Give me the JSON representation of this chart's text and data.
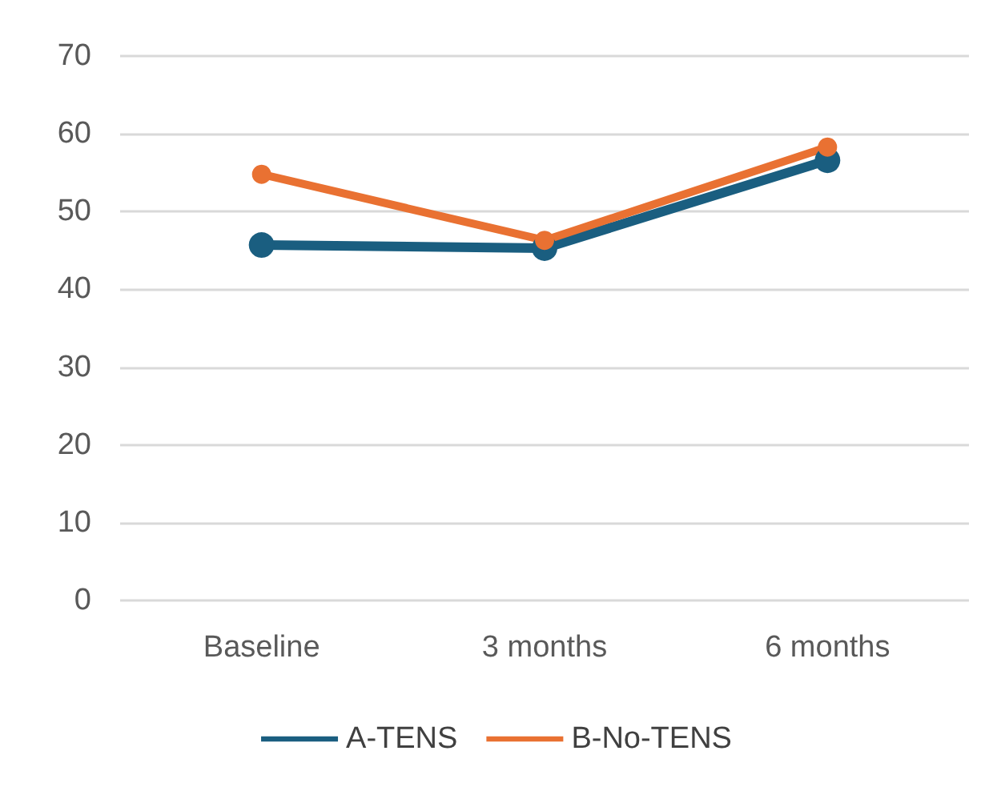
{
  "chart_data": {
    "type": "line",
    "categories": [
      "Baseline",
      "3 months",
      "6 months"
    ],
    "series": [
      {
        "name": "A-TENS",
        "color": "#1a5e80",
        "values": [
          45.7,
          45.3,
          56.6
        ]
      },
      {
        "name": "B-No-TENS",
        "color": "#e97132",
        "values": [
          54.8,
          46.3,
          58.3
        ]
      }
    ],
    "ylim": [
      0,
      70
    ],
    "yticks": [
      0,
      10,
      20,
      30,
      40,
      50,
      60,
      70
    ],
    "grid": "y",
    "legend": "bottom",
    "marker": "circle",
    "line_style": "solid"
  }
}
